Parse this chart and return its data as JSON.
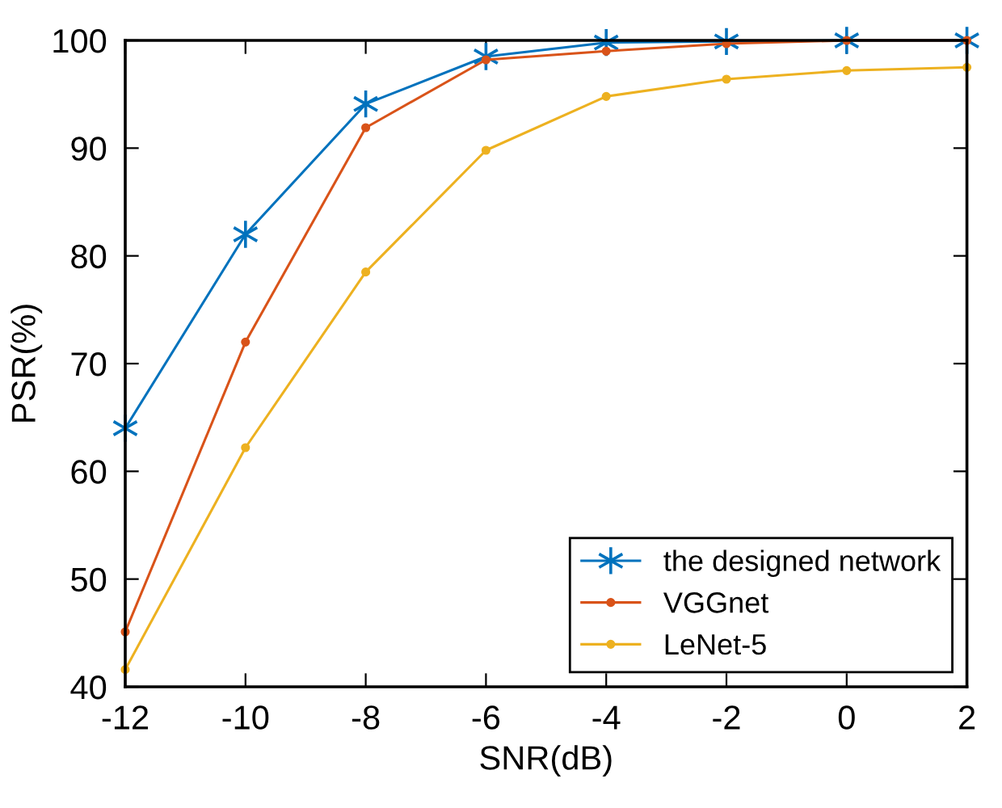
{
  "chart_data": {
    "type": "line",
    "xlabel": "SNR(dB)",
    "ylabel": "PSR(%)",
    "x": [
      -12,
      -10,
      -8,
      -6,
      -4,
      -2,
      0,
      2
    ],
    "series": [
      {
        "name": "the designed network",
        "color": "#0072bd",
        "marker": "cross",
        "values": [
          64.0,
          82.0,
          94.1,
          98.5,
          99.8,
          99.9,
          100,
          100
        ]
      },
      {
        "name": "VGGnet",
        "color": "#d95319",
        "marker": "circle",
        "values": [
          45.1,
          72.0,
          91.9,
          98.2,
          99.0,
          99.7,
          100,
          100
        ]
      },
      {
        "name": "LeNet-5",
        "color": "#edb120",
        "marker": "circle",
        "values": [
          41.6,
          62.2,
          78.5,
          89.8,
          94.8,
          96.4,
          97.2,
          97.5
        ]
      }
    ],
    "xlim": [
      -12,
      2
    ],
    "xticks": [
      -12,
      -10,
      -8,
      -6,
      -4,
      -2,
      0,
      2
    ],
    "ylim": [
      40,
      100
    ],
    "yticks": [
      40,
      50,
      60,
      70,
      80,
      90,
      100
    ],
    "grid": false,
    "legend": "bottom right",
    "line_style": "solid"
  }
}
